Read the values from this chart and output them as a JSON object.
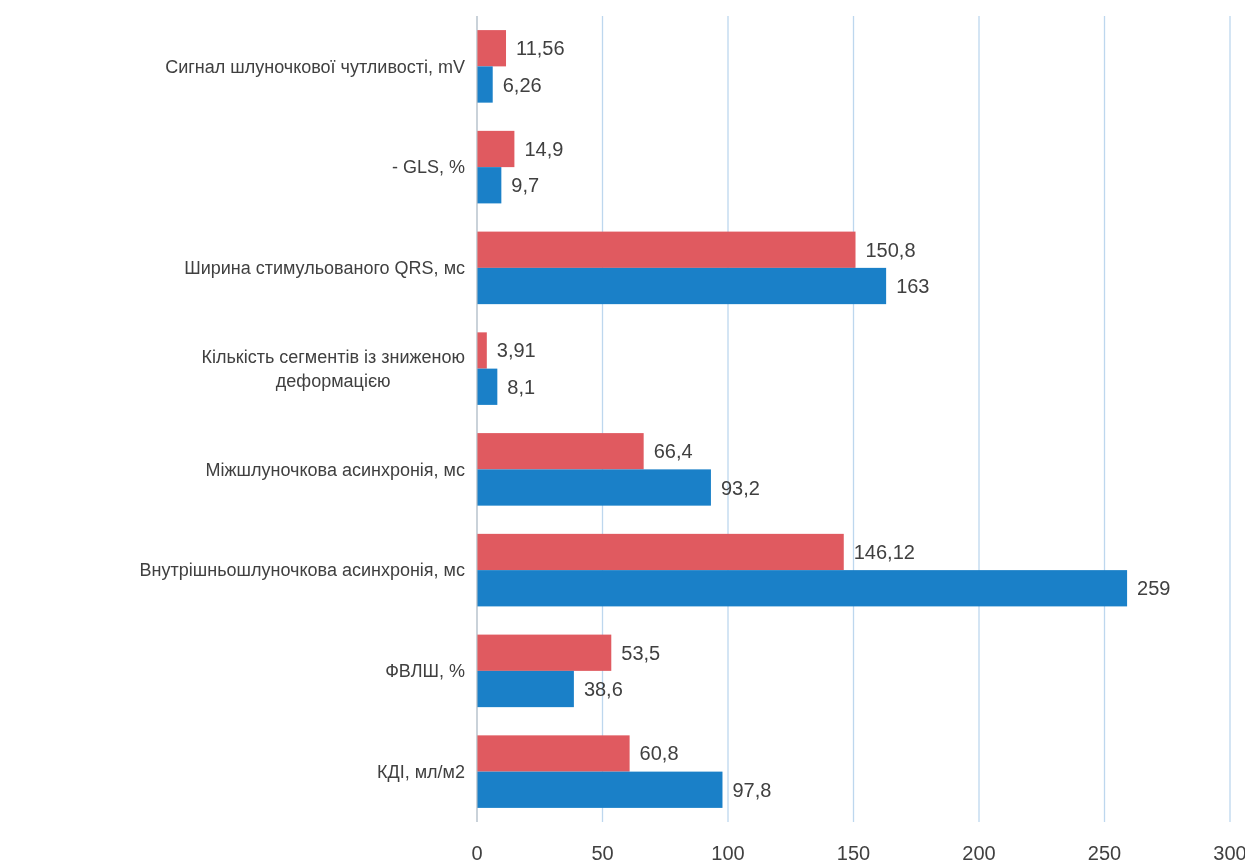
{
  "chart_data": {
    "type": "bar",
    "orientation": "horizontal",
    "categories": [
      "Сигнал шлуночкової чутливості, mV",
      "- GLS, %",
      "Ширина стимульованого QRS, мс",
      "Кількість сегментів із зниженою деформацією",
      "Міжшлуночкова асинхронія, мс",
      "Внутрішньошлуночкова асинхронія, мс",
      "ФВЛШ, %",
      "КДІ, мл/м2"
    ],
    "series": [
      {
        "color": "#e05a60",
        "values": [
          11.56,
          14.9,
          150.8,
          3.91,
          66.4,
          146.12,
          53.5,
          60.8
        ],
        "value_labels": [
          "11,56",
          "14,9",
          "150,8",
          "3,91",
          "66,4",
          "146,12",
          "53,5",
          "60,8"
        ]
      },
      {
        "color": "#1a80c8",
        "values": [
          6.26,
          9.7,
          163,
          8.1,
          93.2,
          259,
          38.6,
          97.8
        ],
        "value_labels": [
          "6,26",
          "9,7",
          "163",
          "8,1",
          "93,2",
          "259",
          "38,6",
          "97,8"
        ]
      }
    ],
    "xlim": [
      0,
      300
    ],
    "xticks": [
      0,
      50,
      100,
      150,
      200,
      250,
      300
    ],
    "grid": "x"
  }
}
